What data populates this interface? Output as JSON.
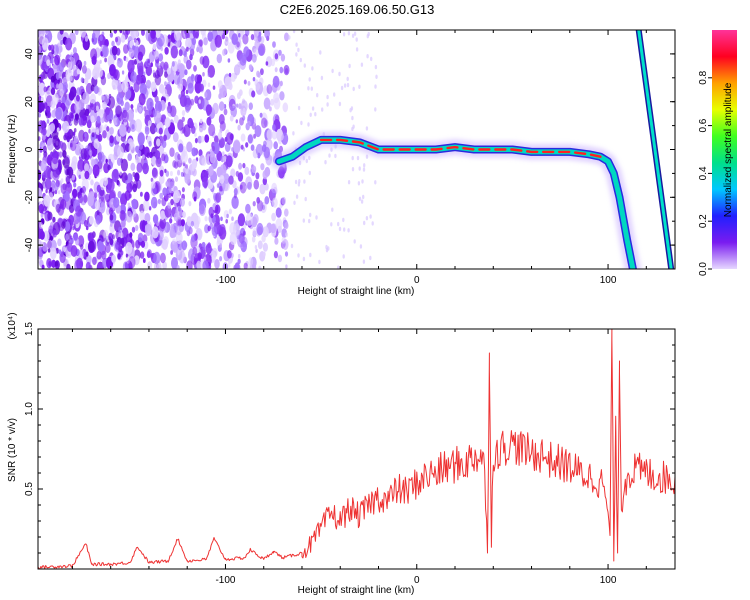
{
  "chart_data": [
    {
      "type": "heatmap",
      "title": "C2E6.2025.169.06.50.G13",
      "xlabel": "Height of straight line (km)",
      "ylabel": "Frequency (Hz)",
      "xlim": [
        -198,
        135
      ],
      "ylim": [
        -50,
        50
      ],
      "xticks": [
        -100,
        0,
        100
      ],
      "xtick_labels": [
        "-100",
        "0",
        "100"
      ],
      "yticks": [
        -40,
        -20,
        0,
        20,
        40
      ],
      "ytick_labels": [
        "-40",
        "-20",
        "0",
        "20",
        "40"
      ],
      "colorbar": {
        "label": "Normalized spectral amplitude",
        "range": [
          0,
          1
        ],
        "ticks": [
          0.0,
          0.2,
          0.4,
          0.6,
          0.8
        ],
        "tick_labels": [
          "0.0",
          "0.2",
          "0.4",
          "0.6",
          "0.8"
        ],
        "stops": [
          "#e6d8ff",
          "#7a1cf0",
          "#2020ff",
          "#00c8ff",
          "#00e08a",
          "#40ff20",
          "#e8ff00",
          "#ffa000",
          "#ff0020",
          "#ff3399"
        ]
      },
      "noise_region": {
        "x_from": -198,
        "x_to": -68,
        "y_from": -50,
        "y_to": 50
      },
      "main_trace": {
        "x": [
          -72,
          -65,
          -58,
          -50,
          -40,
          -30,
          -20,
          -10,
          0,
          10,
          20,
          30,
          40,
          50,
          60,
          70,
          80,
          90,
          96,
          100,
          103,
          106,
          110,
          113
        ],
        "y": [
          -5,
          -3,
          1,
          4,
          4,
          3,
          0,
          0,
          0,
          0,
          1,
          0,
          0,
          0,
          -1,
          -1,
          -1,
          -2,
          -3,
          -5,
          -10,
          -20,
          -38,
          -50
        ]
      },
      "steep_trace": {
        "x": [
          116,
          133
        ],
        "y": [
          50,
          -50
        ]
      }
    },
    {
      "type": "line",
      "xlabel": "Height of straight line (km)",
      "ylabel": "SNR (10 * v/v)",
      "scale_label": "(x10⁴)",
      "xlim": [
        -198,
        135
      ],
      "ylim": [
        0,
        1.5
      ],
      "xticks": [
        -100,
        0,
        100
      ],
      "xtick_labels": [
        "-100",
        "0",
        "100"
      ],
      "yticks": [
        0.5,
        1.0,
        1.5
      ],
      "ytick_labels": [
        "0.5",
        "1.0",
        "1.5"
      ],
      "series": [
        {
          "name": "SNR",
          "color": "#ee3333",
          "x": [
            -198,
            -180,
            -173,
            -170,
            -160,
            -150,
            -146,
            -140,
            -130,
            -125,
            -120,
            -110,
            -106,
            -100,
            -90,
            -87,
            -80,
            -75,
            -70,
            -60,
            -55,
            -50,
            -45,
            -40,
            -35,
            -30,
            -25,
            -20,
            -15,
            -10,
            -5,
            0,
            5,
            10,
            15,
            20,
            25,
            30,
            35,
            37,
            38,
            39,
            40,
            45,
            50,
            55,
            60,
            65,
            70,
            75,
            80,
            85,
            90,
            95,
            98,
            101,
            102,
            103,
            104,
            105,
            106,
            107,
            110,
            115,
            120,
            125,
            130,
            135
          ],
          "y": [
            0.01,
            0.02,
            0.16,
            0.03,
            0.03,
            0.04,
            0.14,
            0.04,
            0.05,
            0.19,
            0.05,
            0.06,
            0.19,
            0.06,
            0.07,
            0.12,
            0.06,
            0.11,
            0.07,
            0.1,
            0.16,
            0.25,
            0.35,
            0.3,
            0.38,
            0.33,
            0.4,
            0.45,
            0.43,
            0.5,
            0.48,
            0.54,
            0.58,
            0.6,
            0.63,
            0.65,
            0.66,
            0.7,
            0.72,
            0.1,
            1.35,
            0.2,
            0.72,
            0.76,
            0.78,
            0.75,
            0.72,
            0.72,
            0.68,
            0.66,
            0.64,
            0.6,
            0.58,
            0.55,
            0.52,
            0.2,
            1.5,
            0.05,
            0.9,
            0.1,
            1.3,
            0.4,
            0.6,
            0.62,
            0.6,
            0.58,
            0.57,
            0.56
          ]
        }
      ]
    }
  ]
}
